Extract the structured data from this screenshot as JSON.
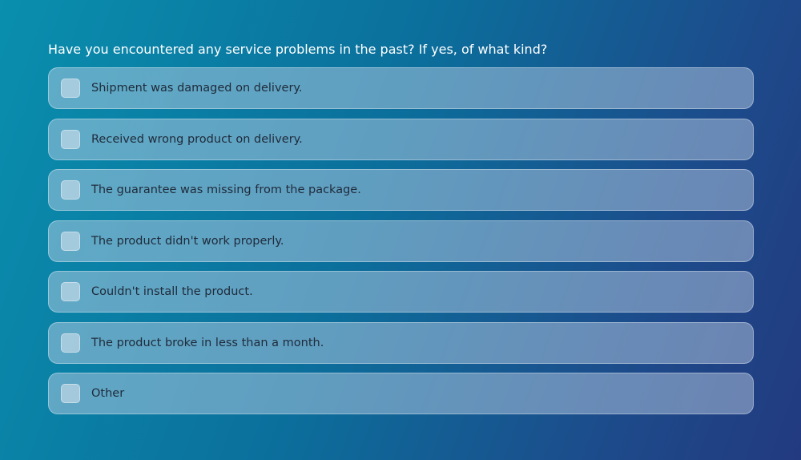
{
  "question": "Have you encountered any service problems in the past? If yes, of what kind?",
  "options": [
    "Shipment was damaged on delivery.",
    "Received wrong product on delivery.",
    "The guarantee was missing from the package.",
    "The product didn't work properly.",
    "Couldn't install the product.",
    "The product broke in less than a month.",
    "Other"
  ]
}
